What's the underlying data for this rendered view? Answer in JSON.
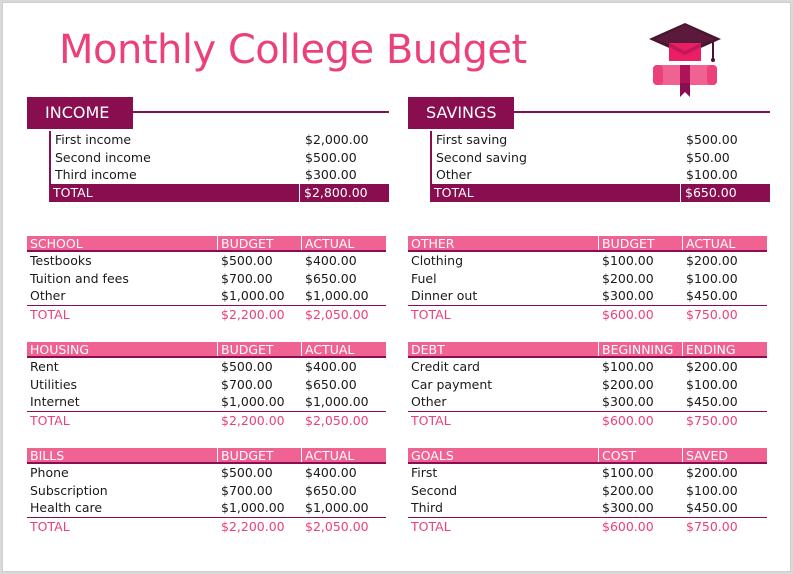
{
  "title": "Monthly College Budget",
  "colors": {
    "primary": "#880e4f",
    "accent": "#f06292",
    "title": "#ec407a"
  },
  "income": {
    "label": "INCOME",
    "rows": [
      {
        "label": "First income",
        "value": "$2,000.00"
      },
      {
        "label": "Second income",
        "value": "$500.00"
      },
      {
        "label": "Third income",
        "value": "$300.00"
      }
    ],
    "total": {
      "label": "TOTAL",
      "value": "$2,800.00"
    }
  },
  "savings": {
    "label": "SAVINGS",
    "rows": [
      {
        "label": "First saving",
        "value": "$500.00"
      },
      {
        "label": "Second saving",
        "value": "$50.00"
      },
      {
        "label": "Other",
        "value": "$100.00"
      }
    ],
    "total": {
      "label": "TOTAL",
      "value": "$650.00"
    }
  },
  "tables": {
    "school": {
      "headers": [
        "SCHOOL",
        "BUDGET",
        "ACTUAL"
      ],
      "rows": [
        [
          "Testbooks",
          "$500.00",
          "$400.00"
        ],
        [
          "Tuition and fees",
          "$700.00",
          "$650.00"
        ],
        [
          "Other",
          "$1,000.00",
          "$1,000.00"
        ]
      ],
      "total": [
        "TOTAL",
        "$2,200.00",
        "$2,050.00"
      ]
    },
    "housing": {
      "headers": [
        "HOUSING",
        "BUDGET",
        "ACTUAL"
      ],
      "rows": [
        [
          "Rent",
          "$500.00",
          "$400.00"
        ],
        [
          "Utilities",
          "$700.00",
          "$650.00"
        ],
        [
          "Internet",
          "$1,000.00",
          "$1,000.00"
        ]
      ],
      "total": [
        "TOTAL",
        "$2,200.00",
        "$2,050.00"
      ]
    },
    "bills": {
      "headers": [
        "BILLS",
        "BUDGET",
        "ACTUAL"
      ],
      "rows": [
        [
          "Phone",
          "$500.00",
          "$400.00"
        ],
        [
          "Subscription",
          "$700.00",
          "$650.00"
        ],
        [
          "Health care",
          "$1,000.00",
          "$1,000.00"
        ]
      ],
      "total": [
        "TOTAL",
        "$2,200.00",
        "$2,050.00"
      ]
    },
    "other": {
      "headers": [
        "OTHER",
        "BUDGET",
        "ACTUAL"
      ],
      "rows": [
        [
          "Clothing",
          "$100.00",
          "$200.00"
        ],
        [
          "Fuel",
          "$200.00",
          "$100.00"
        ],
        [
          "Dinner out",
          "$300.00",
          "$450.00"
        ]
      ],
      "total": [
        "TOTAL",
        "$600.00",
        "$750.00"
      ]
    },
    "debt": {
      "headers": [
        "DEBT",
        "BEGINNING",
        "ENDING"
      ],
      "rows": [
        [
          "Credit card",
          "$100.00",
          "$200.00"
        ],
        [
          "Car payment",
          "$200.00",
          "$100.00"
        ],
        [
          "Other",
          "$300.00",
          "$450.00"
        ]
      ],
      "total": [
        "TOTAL",
        "$600.00",
        "$750.00"
      ]
    },
    "goals": {
      "headers": [
        "GOALS",
        "COST",
        "SAVED"
      ],
      "rows": [
        [
          "First",
          "$100.00",
          "$200.00"
        ],
        [
          "Second",
          "$200.00",
          "$100.00"
        ],
        [
          "Third",
          "$300.00",
          "$450.00"
        ]
      ],
      "total": [
        "TOTAL",
        "$600.00",
        "$750.00"
      ]
    }
  }
}
